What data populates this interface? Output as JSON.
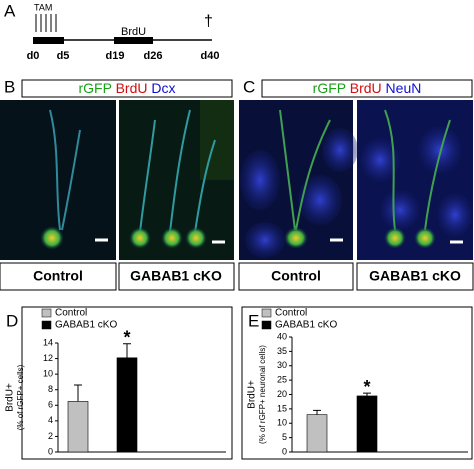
{
  "panel_a": {
    "letter": "A",
    "treatment": "TAM",
    "label": "BrdU",
    "days": [
      "d0",
      "d5",
      "d19",
      "d26",
      "d40"
    ],
    "end_mark": "†"
  },
  "panel_b": {
    "letter": "B",
    "stains": [
      "rGFP",
      "BrdU",
      "Dcx"
    ],
    "conditions": [
      "Control",
      "GABAB1 cKO"
    ]
  },
  "panel_c": {
    "letter": "C",
    "stains": [
      "rGFP",
      "BrdU",
      "NeuN"
    ],
    "conditions": [
      "Control",
      "GABAB1 cKO"
    ]
  },
  "chart_data": [
    {
      "type": "bar",
      "letter": "D",
      "ylabel": [
        "BrdU+",
        "(% of rGFP+ cells)"
      ],
      "ylim": [
        0,
        14
      ],
      "yticks": [
        0,
        2,
        4,
        6,
        8,
        10,
        12,
        14
      ],
      "annotation": "*",
      "series": [
        {
          "name": "Control",
          "color": "#c0c0c0",
          "values": [
            6.5
          ],
          "errors": [
            2.1
          ]
        },
        {
          "name": "GABAB1 cKO",
          "color": "#000000",
          "values": [
            12.1
          ],
          "errors": [
            1.8
          ]
        }
      ]
    },
    {
      "type": "bar",
      "letter": "E",
      "ylabel": [
        "BrdU+",
        "(% of rGFP+ neuronal cells)"
      ],
      "ylim": [
        0,
        40
      ],
      "yticks": [
        0,
        5,
        10,
        15,
        20,
        25,
        30,
        35,
        40
      ],
      "annotation": "*",
      "series": [
        {
          "name": "Control",
          "color": "#c0c0c0",
          "values": [
            13
          ],
          "errors": [
            1.5
          ]
        },
        {
          "name": "GABAB1 cKO",
          "color": "#000000",
          "values": [
            19.5
          ],
          "errors": [
            1
          ]
        }
      ]
    }
  ]
}
